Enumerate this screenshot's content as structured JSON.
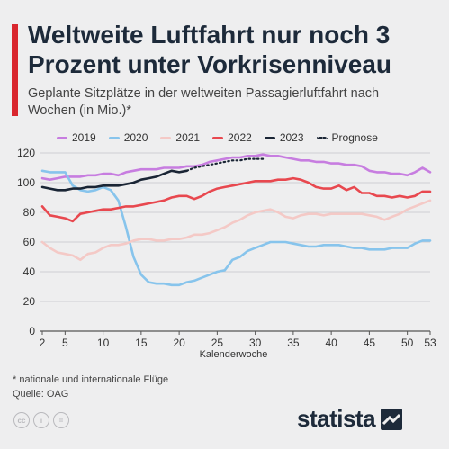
{
  "header": {
    "title": "Weltweite Luftfahrt nur noch 3 Prozent unter Vorkrisenniveau",
    "subtitle": "Geplante Sitzplätze in der weltweiten Passagierluftfahrt nach Wochen (in Mio.)*",
    "accent_color": "#d9262e"
  },
  "legend": [
    {
      "label": "2019",
      "color": "#c77de0"
    },
    {
      "label": "2020",
      "color": "#87c4ec"
    },
    {
      "label": "2021",
      "color": "#f4c9c6"
    },
    {
      "label": "2022",
      "color": "#e8484f"
    },
    {
      "label": "2023",
      "color": "#1a2535"
    },
    {
      "label": "Prognose",
      "color": "#1a2535"
    }
  ],
  "chart_data": {
    "type": "line",
    "xlabel": "Kalenderwoche",
    "ylabel": "",
    "xlim": [
      2,
      53
    ],
    "ylim": [
      0,
      120
    ],
    "x_ticks": [
      2,
      5,
      10,
      15,
      20,
      25,
      30,
      35,
      40,
      45,
      50,
      53
    ],
    "y_ticks": [
      0,
      20,
      40,
      60,
      80,
      100,
      120
    ],
    "grid": true,
    "legend_position": "top",
    "series": [
      {
        "name": "2019",
        "color": "#c77de0",
        "style": "solid",
        "x": [
          2,
          3,
          4,
          5,
          6,
          7,
          8,
          9,
          10,
          11,
          12,
          13,
          14,
          15,
          16,
          17,
          18,
          19,
          20,
          21,
          22,
          23,
          24,
          25,
          26,
          27,
          28,
          29,
          30,
          31,
          32,
          33,
          34,
          35,
          36,
          37,
          38,
          39,
          40,
          41,
          42,
          43,
          44,
          45,
          46,
          47,
          48,
          49,
          50,
          51,
          52,
          53
        ],
        "values": [
          103,
          102,
          103,
          104,
          104,
          104,
          105,
          105,
          106,
          106,
          105,
          107,
          108,
          109,
          109,
          109,
          110,
          110,
          110,
          111,
          111,
          112,
          114,
          115,
          116,
          117,
          117,
          118,
          118,
          119,
          118,
          118,
          117,
          116,
          115,
          115,
          114,
          114,
          113,
          113,
          112,
          112,
          111,
          108,
          107,
          107,
          106,
          106,
          105,
          107,
          110,
          107
        ]
      },
      {
        "name": "2020",
        "color": "#87c4ec",
        "style": "solid",
        "x": [
          2,
          3,
          4,
          5,
          6,
          7,
          8,
          9,
          10,
          11,
          12,
          13,
          14,
          15,
          16,
          17,
          18,
          19,
          20,
          21,
          22,
          23,
          24,
          25,
          26,
          27,
          28,
          29,
          30,
          31,
          32,
          33,
          34,
          35,
          36,
          37,
          38,
          39,
          40,
          41,
          42,
          43,
          44,
          45,
          46,
          47,
          48,
          49,
          50,
          51,
          52,
          53
        ],
        "values": [
          108,
          107,
          107,
          107,
          98,
          95,
          94,
          95,
          97,
          95,
          88,
          70,
          50,
          38,
          33,
          32,
          32,
          31,
          31,
          33,
          34,
          36,
          38,
          40,
          41,
          48,
          50,
          54,
          56,
          58,
          60,
          60,
          60,
          59,
          58,
          57,
          57,
          58,
          58,
          58,
          57,
          56,
          56,
          55,
          55,
          55,
          56,
          56,
          56,
          59,
          61,
          61
        ]
      },
      {
        "name": "2021",
        "color": "#f4c9c6",
        "style": "solid",
        "x": [
          2,
          3,
          4,
          5,
          6,
          7,
          8,
          9,
          10,
          11,
          12,
          13,
          14,
          15,
          16,
          17,
          18,
          19,
          20,
          21,
          22,
          23,
          24,
          25,
          26,
          27,
          28,
          29,
          30,
          31,
          32,
          33,
          34,
          35,
          36,
          37,
          38,
          39,
          40,
          41,
          42,
          43,
          44,
          45,
          46,
          47,
          48,
          49,
          50,
          51,
          52,
          53
        ],
        "values": [
          60,
          56,
          53,
          52,
          51,
          48,
          52,
          53,
          56,
          58,
          58,
          59,
          61,
          62,
          62,
          61,
          61,
          62,
          62,
          63,
          65,
          65,
          66,
          68,
          70,
          73,
          75,
          78,
          80,
          81,
          82,
          80,
          77,
          76,
          78,
          79,
          79,
          78,
          79,
          79,
          79,
          79,
          79,
          78,
          77,
          75,
          77,
          79,
          82,
          84,
          86,
          88
        ]
      },
      {
        "name": "2022",
        "color": "#e8484f",
        "style": "solid",
        "x": [
          2,
          3,
          4,
          5,
          6,
          7,
          8,
          9,
          10,
          11,
          12,
          13,
          14,
          15,
          16,
          17,
          18,
          19,
          20,
          21,
          22,
          23,
          24,
          25,
          26,
          27,
          28,
          29,
          30,
          31,
          32,
          33,
          34,
          35,
          36,
          37,
          38,
          39,
          40,
          41,
          42,
          43,
          44,
          45,
          46,
          47,
          48,
          49,
          50,
          51,
          52,
          53
        ],
        "values": [
          84,
          78,
          77,
          76,
          74,
          79,
          80,
          81,
          82,
          82,
          83,
          84,
          84,
          85,
          86,
          87,
          88,
          90,
          91,
          91,
          89,
          91,
          94,
          96,
          97,
          98,
          99,
          100,
          101,
          101,
          101,
          102,
          102,
          103,
          102,
          100,
          97,
          96,
          96,
          98,
          95,
          97,
          93,
          93,
          91,
          91,
          90,
          91,
          90,
          91,
          94,
          94
        ]
      },
      {
        "name": "2023",
        "color": "#1a2535",
        "style": "solid",
        "x": [
          2,
          3,
          4,
          5,
          6,
          7,
          8,
          9,
          10,
          11,
          12,
          13,
          14,
          15,
          16,
          17,
          18,
          19,
          20,
          21
        ],
        "values": [
          97,
          96,
          95,
          95,
          96,
          96,
          97,
          97,
          98,
          98,
          98,
          99,
          100,
          102,
          103,
          104,
          106,
          108,
          107,
          108
        ]
      },
      {
        "name": "Prognose",
        "color": "#1a2535",
        "style": "dotted",
        "x": [
          21,
          22,
          23,
          24,
          25,
          26,
          27,
          28,
          29,
          30,
          31
        ],
        "values": [
          108,
          110,
          111,
          112,
          113,
          114,
          115,
          115,
          116,
          116,
          116
        ]
      }
    ]
  },
  "footer": {
    "footnote": "* nationale und internationale Flüge",
    "source": "Quelle: OAG",
    "brand": "statista",
    "cc_icons": [
      "cc-icon",
      "info-icon",
      "equals-icon"
    ]
  }
}
